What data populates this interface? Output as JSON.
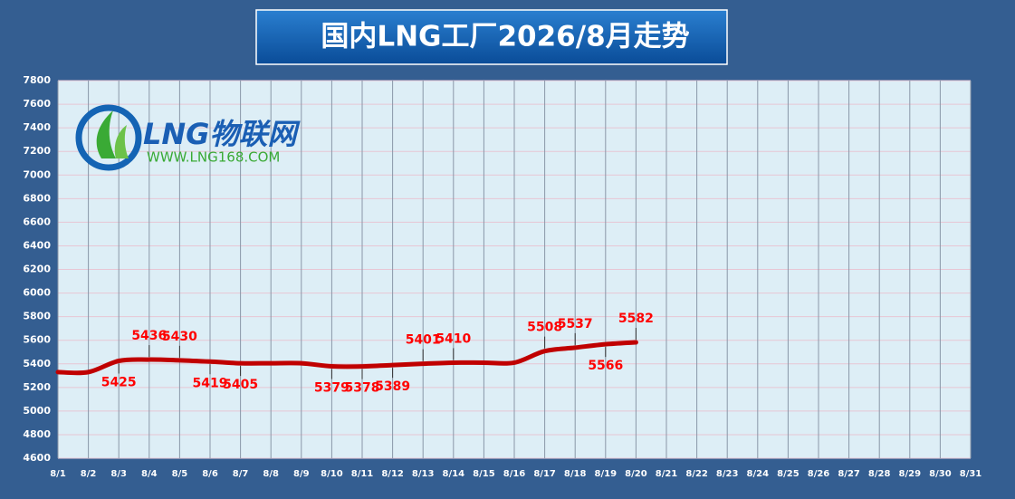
{
  "chart_data": {
    "type": "line",
    "title": "国内LNG工厂2026/8月走势",
    "logo_text": "LNG物联网",
    "logo_url": "WWW.LNG168.COM",
    "categories": [
      "8/1",
      "8/2",
      "8/3",
      "8/4",
      "8/5",
      "8/6",
      "8/7",
      "8/8",
      "8/9",
      "8/10",
      "8/11",
      "8/12",
      "8/13",
      "8/14",
      "8/15",
      "8/16",
      "8/17",
      "8/18",
      "8/19",
      "8/20",
      "8/21",
      "8/22",
      "8/23",
      "8/24",
      "8/25",
      "8/26",
      "8/27",
      "8/28",
      "8/29",
      "8/30",
      "8/31"
    ],
    "series": [
      {
        "name": "LNG",
        "color": "#c00000",
        "values": [
          5330,
          5330,
          5425,
          5436,
          5430,
          5419,
          5405,
          5405,
          5405,
          5379,
          5378,
          5389,
          5401,
          5410,
          5410,
          5410,
          5508,
          5537,
          5566,
          5582,
          null,
          null,
          null,
          null,
          null,
          null,
          null,
          null,
          null,
          null,
          null
        ],
        "value_labels": [
          null,
          null,
          "5425",
          "5436",
          "5430",
          "5419",
          "5405",
          null,
          null,
          "5379",
          "5378",
          "5389",
          "5401",
          "5410",
          null,
          null,
          "5508",
          "5537",
          "5566",
          "5582",
          null,
          null,
          null,
          null,
          null,
          null,
          null,
          null,
          null,
          null,
          null
        ]
      }
    ],
    "ylim": [
      4600,
      7800
    ],
    "yticks": [
      4600,
      4800,
      5000,
      5200,
      5400,
      5600,
      5800,
      6000,
      6200,
      6400,
      6600,
      6800,
      7000,
      7200,
      7400,
      7600,
      7800
    ],
    "grid": true
  }
}
